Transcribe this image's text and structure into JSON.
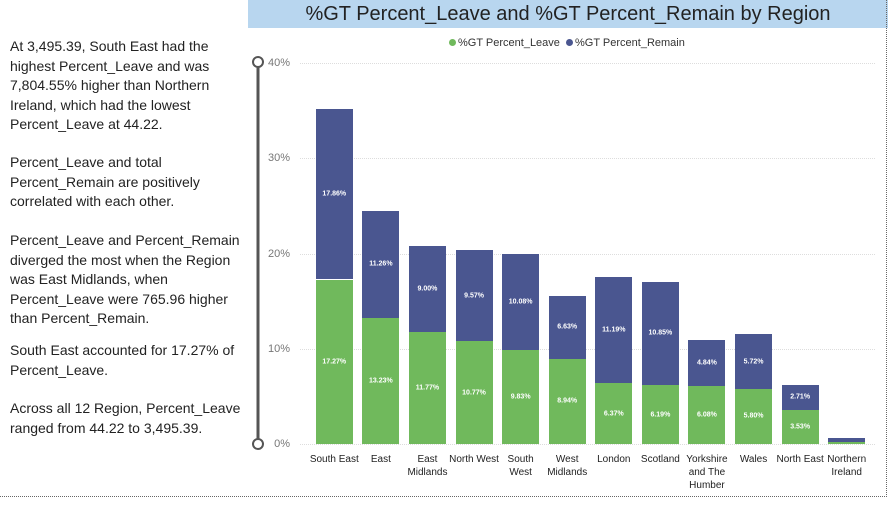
{
  "narrative": [
    "At 3,495.39, South East had the highest Percent_Leave and was 7,804.55% higher than Northern Ireland, which had the lowest Percent_Leave at 44.22.",
    "Percent_Leave and total Percent_Remain are positively correlated with each other.",
    "Percent_Leave and Percent_Remain diverged the most when the Region was East Midlands, when Percent_Leave were 765.96 higher than Percent_Remain.",
    "South East accounted for 17.27% of Percent_Leave.",
    "Across all 12 Region, Percent_Leave ranged from 44.22 to 3,495.39."
  ],
  "chart_data": {
    "type": "stacked-bar",
    "title": "%GT Percent_Leave and %GT Percent_Remain by Region",
    "categories": [
      "South East",
      "East",
      "East Midlands",
      "North West",
      "South West",
      "West Midlands",
      "London",
      "Scotland",
      "Yorkshire and The Humber",
      "Wales",
      "North East",
      "Northern Ireland"
    ],
    "series": [
      {
        "name": "%GT Percent_Leave",
        "color": "#70b95c",
        "values": [
          17.27,
          13.23,
          11.77,
          10.77,
          9.83,
          8.94,
          6.37,
          6.19,
          6.08,
          5.8,
          3.53,
          0.2
        ],
        "value_labels": [
          "17.27%",
          "13.23%",
          "11.77%",
          "10.77%",
          "9.83%",
          "8.94%",
          "6.37%",
          "6.19%",
          "6.08%",
          "5.80%",
          "3.53%",
          null
        ]
      },
      {
        "name": "%GT Percent_Remain",
        "color": "#4a5690",
        "values": [
          17.86,
          11.26,
          9.0,
          9.57,
          10.08,
          6.63,
          11.19,
          10.85,
          4.84,
          5.72,
          2.71,
          0.4
        ],
        "value_labels": [
          "17.86%",
          "11.26%",
          "9.00%",
          "9.57%",
          "10.08%",
          "6.63%",
          "11.19%",
          "10.85%",
          "4.84%",
          "5.72%",
          "2.71%",
          null
        ]
      }
    ],
    "ylim": [
      0,
      40
    ],
    "yticks": [
      {
        "value": 0,
        "label": "0%"
      },
      {
        "value": 10,
        "label": "10%"
      },
      {
        "value": 20,
        "label": "20%"
      },
      {
        "value": 30,
        "label": "30%"
      },
      {
        "value": 40,
        "label": "40%"
      }
    ],
    "grid": true
  }
}
